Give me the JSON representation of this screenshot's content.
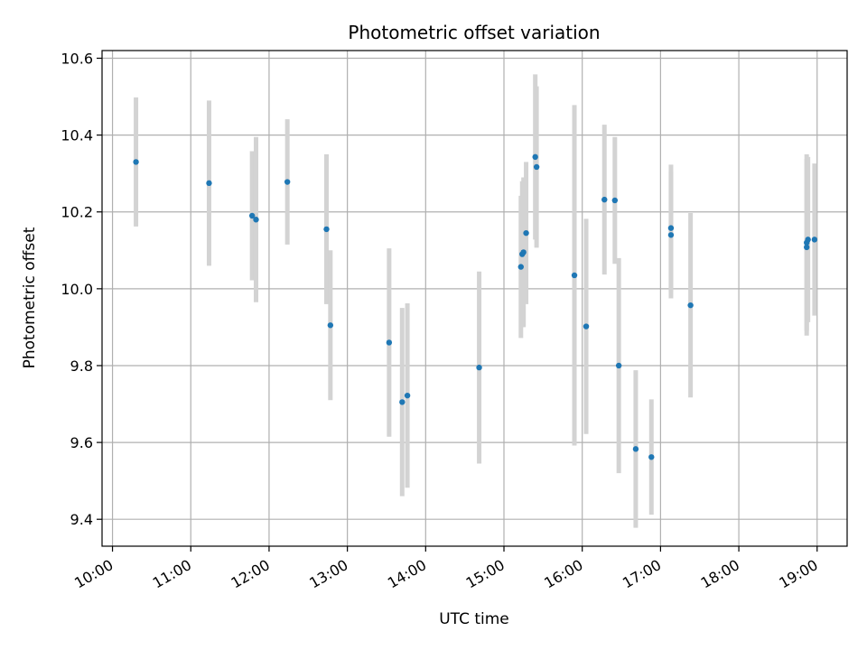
{
  "chart_data": {
    "type": "scatter",
    "title": "Photometric offset variation",
    "xlabel": "UTC time",
    "ylabel": "Photometric offset",
    "x_ticks": [
      "10:00",
      "11:00",
      "12:00",
      "13:00",
      "14:00",
      "15:00",
      "16:00",
      "17:00",
      "18:00",
      "19:00"
    ],
    "y_ticks": [
      "9.4",
      "9.6",
      "9.8",
      "10.0",
      "10.2",
      "10.4",
      "10.6"
    ],
    "xlim": [
      "09:52",
      "19:23"
    ],
    "ylim": [
      9.33,
      10.62
    ],
    "grid": true,
    "colors": {
      "points": "#1f77b4",
      "errorbars": "#d3d3d3",
      "grid": "#b0b0b0"
    },
    "points": [
      {
        "t": "10:18",
        "y": 10.33,
        "err": 0.168
      },
      {
        "t": "11:14",
        "y": 10.275,
        "err": 0.215
      },
      {
        "t": "11:47",
        "y": 10.19,
        "err": 0.168
      },
      {
        "t": "11:50",
        "y": 10.18,
        "err": 0.215
      },
      {
        "t": "12:14",
        "y": 10.278,
        "err": 0.163
      },
      {
        "t": "12:44",
        "y": 10.155,
        "err": 0.195
      },
      {
        "t": "12:47",
        "y": 9.905,
        "err": 0.195
      },
      {
        "t": "13:32",
        "y": 9.86,
        "err": 0.245
      },
      {
        "t": "13:42",
        "y": 9.705,
        "err": 0.245
      },
      {
        "t": "13:46",
        "y": 9.722,
        "err": 0.24
      },
      {
        "t": "14:41",
        "y": 9.795,
        "err": 0.25
      },
      {
        "t": "15:13",
        "y": 10.057,
        "err": 0.185
      },
      {
        "t": "15:14",
        "y": 10.09,
        "err": 0.19
      },
      {
        "t": "15:15",
        "y": 10.095,
        "err": 0.195
      },
      {
        "t": "15:17",
        "y": 10.145,
        "err": 0.185
      },
      {
        "t": "15:24",
        "y": 10.343,
        "err": 0.215
      },
      {
        "t": "15:25",
        "y": 10.317,
        "err": 0.21
      },
      {
        "t": "15:54",
        "y": 10.035,
        "err": 0.443
      },
      {
        "t": "16:03",
        "y": 9.902,
        "err": 0.28
      },
      {
        "t": "16:17",
        "y": 10.232,
        "err": 0.195
      },
      {
        "t": "16:25",
        "y": 10.23,
        "err": 0.165
      },
      {
        "t": "16:28",
        "y": 9.8,
        "err": 0.28
      },
      {
        "t": "16:41",
        "y": 9.583,
        "err": 0.205
      },
      {
        "t": "16:53",
        "y": 9.562,
        "err": 0.15
      },
      {
        "t": "17:08",
        "y": 10.158,
        "err": 0.165
      },
      {
        "t": "17:08",
        "y": 10.14,
        "err": 0.165
      },
      {
        "t": "17:23",
        "y": 9.957,
        "err": 0.24
      },
      {
        "t": "18:52",
        "y": 10.108,
        "err": 0.23
      },
      {
        "t": "18:52",
        "y": 10.12,
        "err": 0.23
      },
      {
        "t": "18:53",
        "y": 10.128,
        "err": 0.215
      },
      {
        "t": "18:58",
        "y": 10.128,
        "err": 0.198
      }
    ]
  }
}
